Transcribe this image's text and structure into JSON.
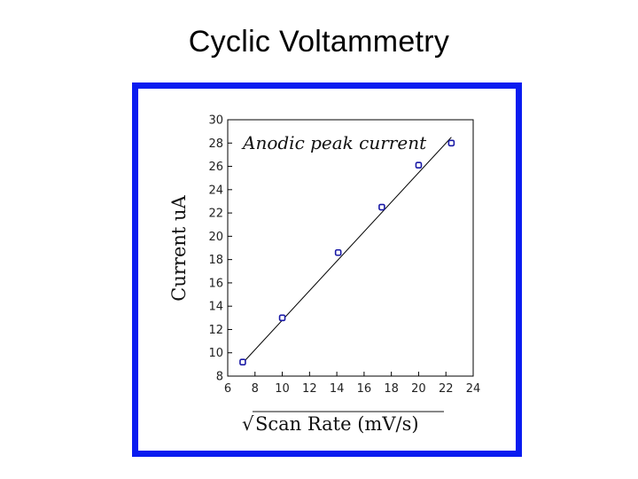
{
  "slide": {
    "title": "Cyclic Voltammetry"
  },
  "colors": {
    "frame": "#0a1cf0",
    "marker": "#1a1aa6",
    "line": "#000000"
  },
  "chart_data": {
    "type": "scatter",
    "title": "",
    "annotation": "Anodic peak current",
    "xlabel": "Scan Rate (mV/s)",
    "xlabel_symbol": "√",
    "ylabel": "Current uA",
    "xlim": [
      6,
      24
    ],
    "ylim": [
      8,
      30
    ],
    "xticks": [
      6,
      8,
      10,
      12,
      14,
      16,
      18,
      20,
      22,
      24
    ],
    "yticks": [
      8,
      10,
      12,
      14,
      16,
      18,
      20,
      22,
      24,
      26,
      28,
      30
    ],
    "grid": false,
    "legend": "none",
    "series": [
      {
        "x": [
          7.1,
          10.0,
          14.1,
          17.3,
          20.0,
          22.4
        ],
        "y": [
          9.2,
          13.0,
          18.6,
          22.5,
          26.1,
          28.0
        ]
      }
    ],
    "fit_line": {
      "x": [
        7.0,
        22.4
      ],
      "y": [
        9.0,
        28.5
      ]
    }
  }
}
